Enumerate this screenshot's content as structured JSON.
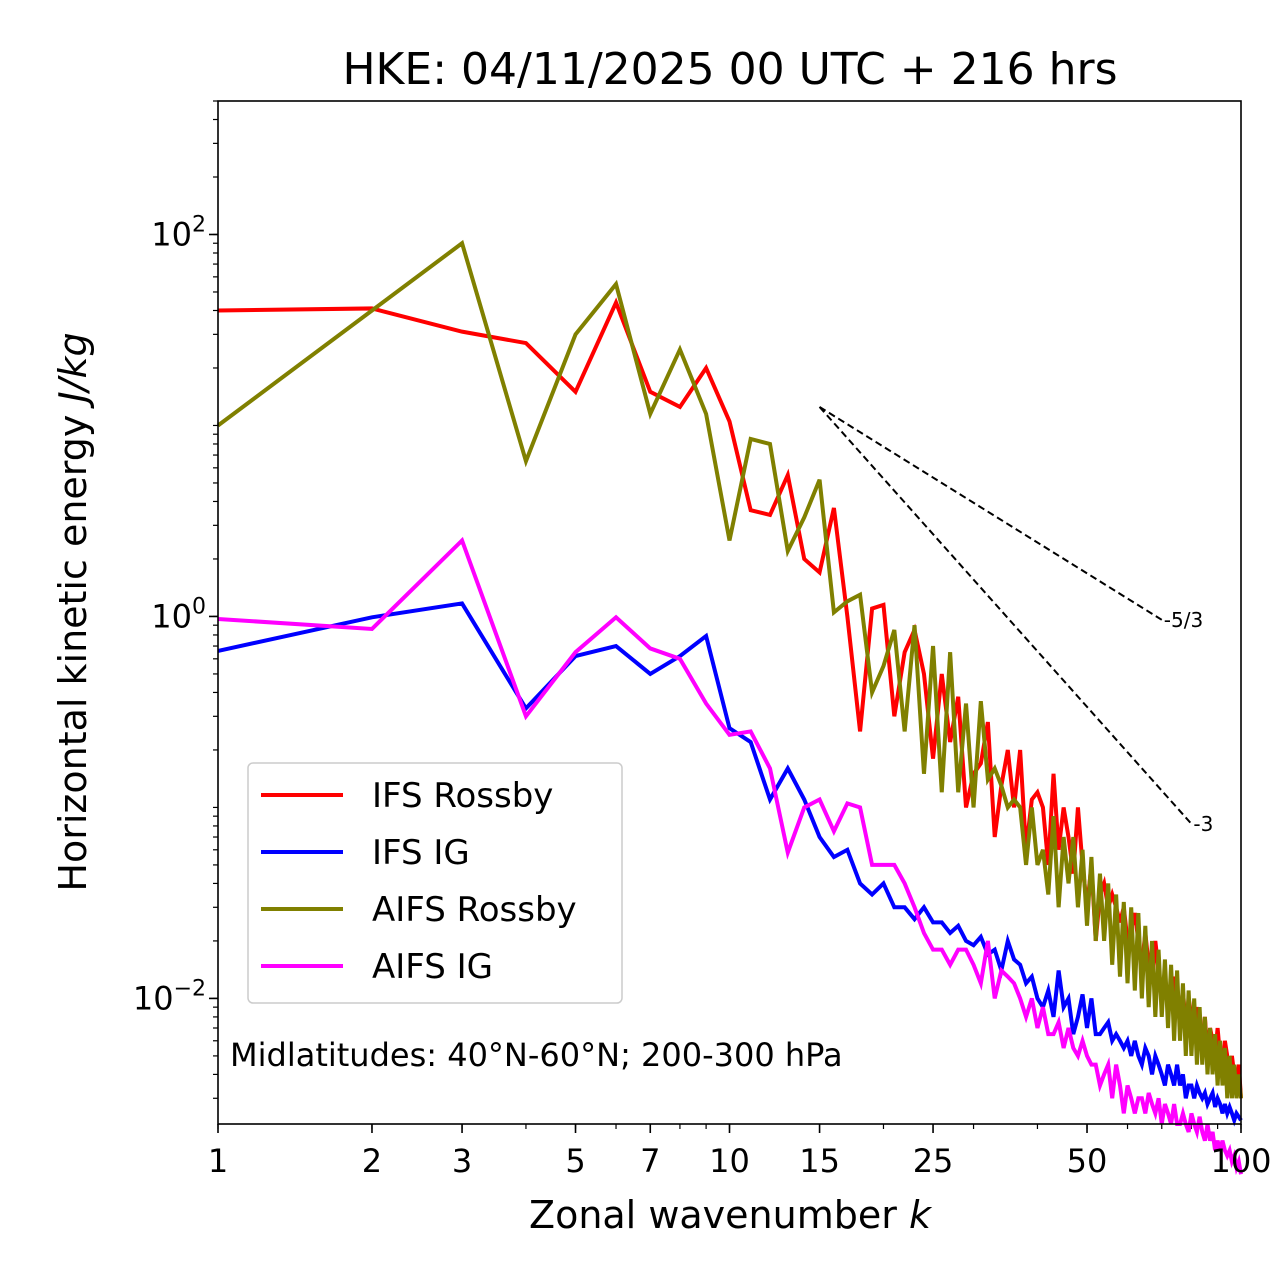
{
  "chart_data": {
    "type": "line",
    "title": "HKE: 04/11/2025 00 UTC + 216 hrs",
    "xlabel_text": "Zonal wavenumber ",
    "xlabel_italic": "k",
    "ylabel_text": "Horizontal kinetic energy ",
    "ylabel_italic": "J/kg",
    "xscale": "log",
    "yscale": "log",
    "xlim": [
      1,
      100
    ],
    "ylim": [
      0.0022,
      500
    ],
    "x_ticks": [
      1,
      2,
      3,
      5,
      7,
      10,
      15,
      25,
      50,
      100
    ],
    "x_tick_labels": [
      "1",
      "2",
      "3",
      "5",
      "7",
      "10",
      "15",
      "25",
      "50",
      "100"
    ],
    "y_ticks": [
      {
        "value": 100,
        "base": "10",
        "exp": "2"
      },
      {
        "value": 1,
        "base": "10",
        "exp": "0"
      },
      {
        "value": 0.01,
        "base": "10",
        "exp": "−2"
      }
    ],
    "annotation": "Midlatitudes: 40°N-60°N; 200-300 hPa",
    "legend_position": "lower-left",
    "series": [
      {
        "name": "IFS Rossby",
        "color": "#ff0000",
        "values": [
          40,
          41,
          31,
          27,
          15,
          44,
          15,
          12.5,
          20,
          10.5,
          3.6,
          3.4,
          5.5,
          2.0,
          1.7,
          3.7,
          1.0,
          0.25,
          1.1,
          1.15,
          0.3,
          0.65,
          0.85,
          0.5,
          0.18,
          0.5,
          0.22,
          0.38,
          0.1,
          0.15,
          0.17,
          0.28,
          0.07,
          0.13,
          0.2,
          0.1,
          0.2,
          0.06,
          0.11,
          0.12,
          0.1,
          0.05,
          0.15,
          0.06,
          0.1,
          0.07,
          0.045,
          0.1,
          0.05,
          0.03,
          0.05,
          0.02,
          0.035,
          0.04,
          0.03,
          0.035,
          0.03,
          0.025,
          0.03,
          0.02,
          0.023,
          0.028,
          0.02,
          0.015,
          0.022,
          0.015,
          0.012,
          0.02,
          0.014,
          0.01,
          0.012,
          0.009,
          0.01,
          0.013,
          0.009,
          0.008,
          0.011,
          0.007,
          0.01,
          0.008,
          0.007,
          0.009,
          0.007,
          0.006,
          0.008,
          0.005,
          0.007,
          0.006,
          0.005,
          0.007,
          0.005,
          0.004,
          0.006,
          0.005,
          0.004,
          0.005,
          0.004,
          0.0035,
          0.0045,
          0.003
        ]
      },
      {
        "name": "IFS IG",
        "color": "#0000ff",
        "values": [
          0.66,
          0.99,
          1.17,
          0.33,
          0.62,
          0.7,
          0.5,
          0.62,
          0.79,
          0.26,
          0.22,
          0.11,
          0.16,
          0.11,
          0.07,
          0.055,
          0.06,
          0.04,
          0.035,
          0.04,
          0.03,
          0.03,
          0.026,
          0.03,
          0.025,
          0.025,
          0.022,
          0.024,
          0.02,
          0.019,
          0.021,
          0.017,
          0.018,
          0.014,
          0.02,
          0.016,
          0.015,
          0.012,
          0.013,
          0.01,
          0.009,
          0.011,
          0.008,
          0.014,
          0.009,
          0.01,
          0.0065,
          0.008,
          0.0105,
          0.007,
          0.01,
          0.0065,
          0.0065,
          0.007,
          0.0075,
          0.006,
          0.0065,
          0.006,
          0.0055,
          0.006,
          0.005,
          0.006,
          0.005,
          0.0045,
          0.0055,
          0.005,
          0.004,
          0.005,
          0.0045,
          0.004,
          0.0035,
          0.0045,
          0.004,
          0.0035,
          0.0045,
          0.0035,
          0.004,
          0.003,
          0.0035,
          0.0035,
          0.003,
          0.0035,
          0.0032,
          0.003,
          0.0032,
          0.0028,
          0.003,
          0.0032,
          0.0027,
          0.003,
          0.0028,
          0.0025,
          0.0028,
          0.0025,
          0.0027,
          0.0025,
          0.0023,
          0.0025,
          0.0024,
          0.0023
        ]
      },
      {
        "name": "AIFS Rossby",
        "color": "#808000",
        "values": [
          10,
          40,
          90,
          6.5,
          30,
          55,
          11.5,
          25,
          11.5,
          2.5,
          8.5,
          8,
          2.2,
          3.3,
          5.2,
          1.05,
          1.2,
          1.3,
          0.4,
          0.55,
          0.85,
          0.25,
          0.9,
          0.15,
          0.7,
          0.12,
          0.65,
          0.12,
          0.35,
          0.1,
          0.36,
          0.14,
          0.16,
          0.13,
          0.1,
          0.11,
          0.1,
          0.05,
          0.1,
          0.05,
          0.06,
          0.035,
          0.09,
          0.03,
          0.07,
          0.04,
          0.07,
          0.03,
          0.06,
          0.024,
          0.055,
          0.02,
          0.045,
          0.02,
          0.04,
          0.015,
          0.035,
          0.013,
          0.032,
          0.012,
          0.03,
          0.011,
          0.028,
          0.01,
          0.024,
          0.009,
          0.02,
          0.008,
          0.018,
          0.008,
          0.016,
          0.007,
          0.015,
          0.006,
          0.014,
          0.006,
          0.012,
          0.005,
          0.011,
          0.005,
          0.01,
          0.0045,
          0.009,
          0.0045,
          0.008,
          0.004,
          0.007,
          0.004,
          0.0065,
          0.0035,
          0.006,
          0.0035,
          0.0055,
          0.003,
          0.005,
          0.003,
          0.0045,
          0.003,
          0.004,
          0.003
        ]
      },
      {
        "name": "AIFS IG",
        "color": "#ff00ff",
        "values": [
          0.97,
          0.86,
          2.5,
          0.3,
          0.65,
          0.99,
          0.68,
          0.6,
          0.35,
          0.24,
          0.25,
          0.16,
          0.058,
          0.1,
          0.11,
          0.075,
          0.105,
          0.1,
          0.05,
          0.05,
          0.05,
          0.04,
          0.03,
          0.022,
          0.018,
          0.018,
          0.015,
          0.018,
          0.018,
          0.015,
          0.012,
          0.02,
          0.01,
          0.014,
          0.013,
          0.012,
          0.01,
          0.008,
          0.01,
          0.007,
          0.009,
          0.0065,
          0.0065,
          0.0075,
          0.0055,
          0.007,
          0.0055,
          0.005,
          0.006,
          0.005,
          0.0045,
          0.0045,
          0.0035,
          0.004,
          0.0045,
          0.003,
          0.0045,
          0.0035,
          0.0025,
          0.0035,
          0.003,
          0.0025,
          0.003,
          0.003,
          0.0025,
          0.0032,
          0.0028,
          0.0025,
          0.003,
          0.0022,
          0.0028,
          0.0025,
          0.0022,
          0.0028,
          0.0022,
          0.0022,
          0.0025,
          0.0022,
          0.002,
          0.0025,
          0.0022,
          0.002,
          0.0024,
          0.002,
          0.0018,
          0.0022,
          0.0018,
          0.002,
          0.0016,
          0.0018,
          0.0016,
          0.0018,
          0.0016,
          0.0015,
          0.0016,
          0.0014,
          0.0015,
          0.0013,
          0.0014,
          0.0012
        ]
      }
    ],
    "reference_lines": [
      {
        "label": "-5/3",
        "slope": -1.6667,
        "x": [
          15,
          70
        ],
        "y": [
          12.5,
          0.96
        ]
      },
      {
        "label": "-3",
        "slope": -3,
        "x": [
          15,
          80
        ],
        "y": [
          12.5,
          0.082
        ]
      }
    ]
  }
}
